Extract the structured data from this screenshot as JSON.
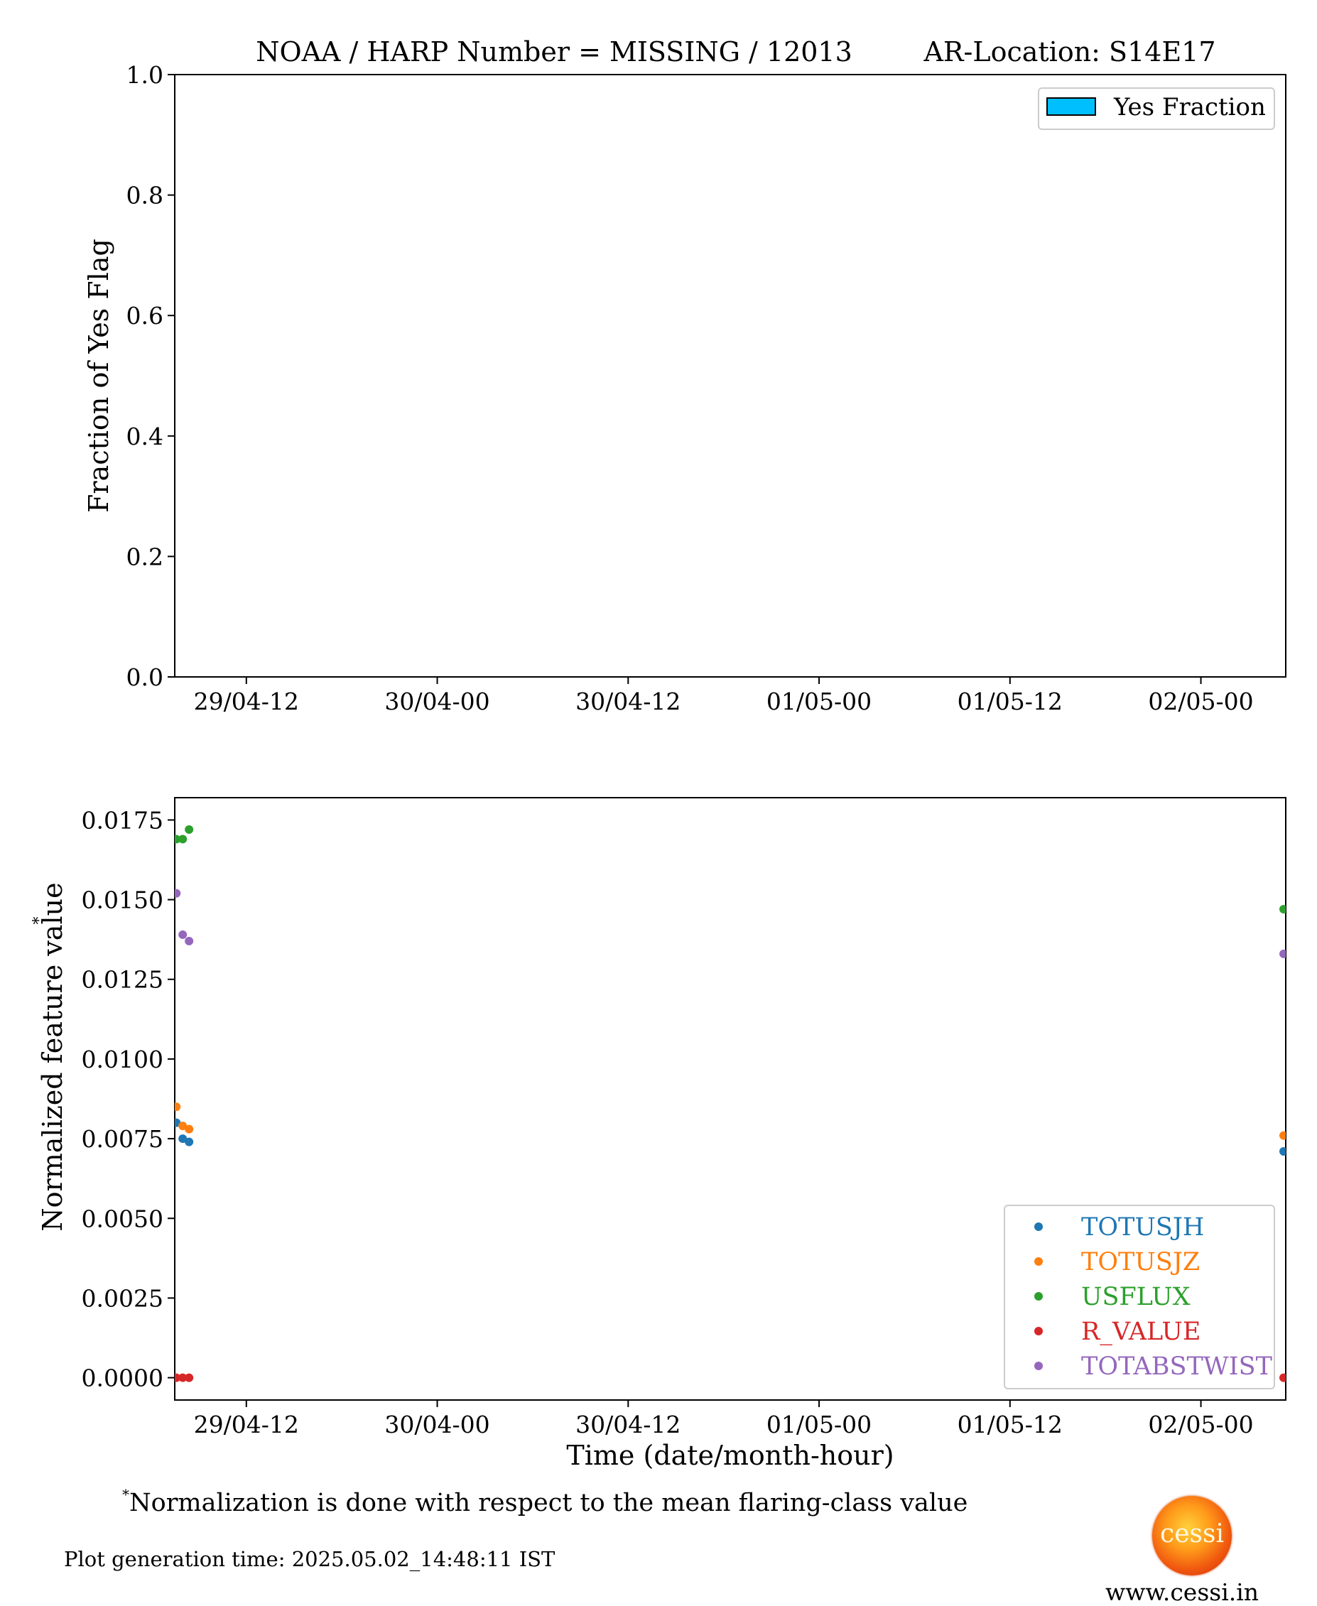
{
  "chart_data": [
    {
      "type": "bar",
      "title_left": "NOAA / HARP Number = MISSING / 12013",
      "title_right": "AR-Location: S14E17",
      "xlabel": "",
      "ylabel": "Fraction of Yes Flag",
      "ylim": [
        0.0,
        1.0
      ],
      "yticks": [
        "0.0",
        "0.2",
        "0.4",
        "0.6",
        "0.8",
        "1.0"
      ],
      "xticks": [
        "29/04-12",
        "30/04-00",
        "30/04-12",
        "01/05-00",
        "01/05-12",
        "02/05-00"
      ],
      "grid": false,
      "legend": {
        "placement": "top-right",
        "entries": [
          {
            "name": "Yes Fraction",
            "color": "#00bfff"
          }
        ]
      },
      "series": [
        {
          "name": "Yes Fraction",
          "values": []
        }
      ]
    },
    {
      "type": "scatter",
      "xlabel": "Time (date/month-hour)",
      "ylabel": "Normalized feature value",
      "ylabel_marker": "*",
      "xlim": [
        "2014-04-29 07:30",
        "2014-05-02 05:20"
      ],
      "ylim": [
        -0.0007,
        0.0182
      ],
      "yticks": [
        "0.0000",
        "0.0025",
        "0.0050",
        "0.0075",
        "0.0100",
        "0.0125",
        "0.0150",
        "0.0175"
      ],
      "xticks": [
        "29/04-12",
        "30/04-00",
        "30/04-12",
        "01/05-00",
        "01/05-12",
        "02/05-00"
      ],
      "grid": false,
      "legend": {
        "placement": "lower-right"
      },
      "series": [
        {
          "name": "TOTUSJH",
          "color": "#1f77b4",
          "points": [
            {
              "x": "2014-04-29 07:36",
              "y": 0.008
            },
            {
              "x": "2014-04-29 08:00",
              "y": 0.0075
            },
            {
              "x": "2014-04-29 08:24",
              "y": 0.0074
            },
            {
              "x": "2014-05-02 05:12",
              "y": 0.0071
            }
          ]
        },
        {
          "name": "TOTUSJZ",
          "color": "#ff7f0e",
          "points": [
            {
              "x": "2014-04-29 07:36",
              "y": 0.0085
            },
            {
              "x": "2014-04-29 08:00",
              "y": 0.0079
            },
            {
              "x": "2014-04-29 08:24",
              "y": 0.0078
            },
            {
              "x": "2014-05-02 05:12",
              "y": 0.0076
            }
          ]
        },
        {
          "name": "USFLUX",
          "color": "#2ca02c",
          "points": [
            {
              "x": "2014-04-29 07:36",
              "y": 0.0169
            },
            {
              "x": "2014-04-29 08:00",
              "y": 0.0169
            },
            {
              "x": "2014-04-29 08:24",
              "y": 0.0172
            },
            {
              "x": "2014-05-02 05:12",
              "y": 0.0147
            }
          ]
        },
        {
          "name": "R_VALUE",
          "color": "#d62728",
          "points": [
            {
              "x": "2014-04-29 07:36",
              "y": 0.0
            },
            {
              "x": "2014-04-29 08:00",
              "y": 0.0
            },
            {
              "x": "2014-04-29 08:24",
              "y": 0.0
            },
            {
              "x": "2014-05-02 05:12",
              "y": 0.0
            }
          ]
        },
        {
          "name": "TOTABSTWIST",
          "color": "#9467bd",
          "points": [
            {
              "x": "2014-04-29 07:36",
              "y": 0.0152
            },
            {
              "x": "2014-04-29 08:00",
              "y": 0.0139
            },
            {
              "x": "2014-04-29 08:24",
              "y": 0.0137
            },
            {
              "x": "2014-05-02 05:12",
              "y": 0.0133
            }
          ]
        }
      ]
    }
  ],
  "footnote": {
    "marker": "*",
    "text": "Normalization is done with respect to the mean flaring-class value"
  },
  "generation_time": "Plot generation time: 2025.05.02_14:48:11 IST",
  "logo": {
    "label": "cessi",
    "icon": "sun-logo-icon"
  },
  "website": "www.cessi.in"
}
